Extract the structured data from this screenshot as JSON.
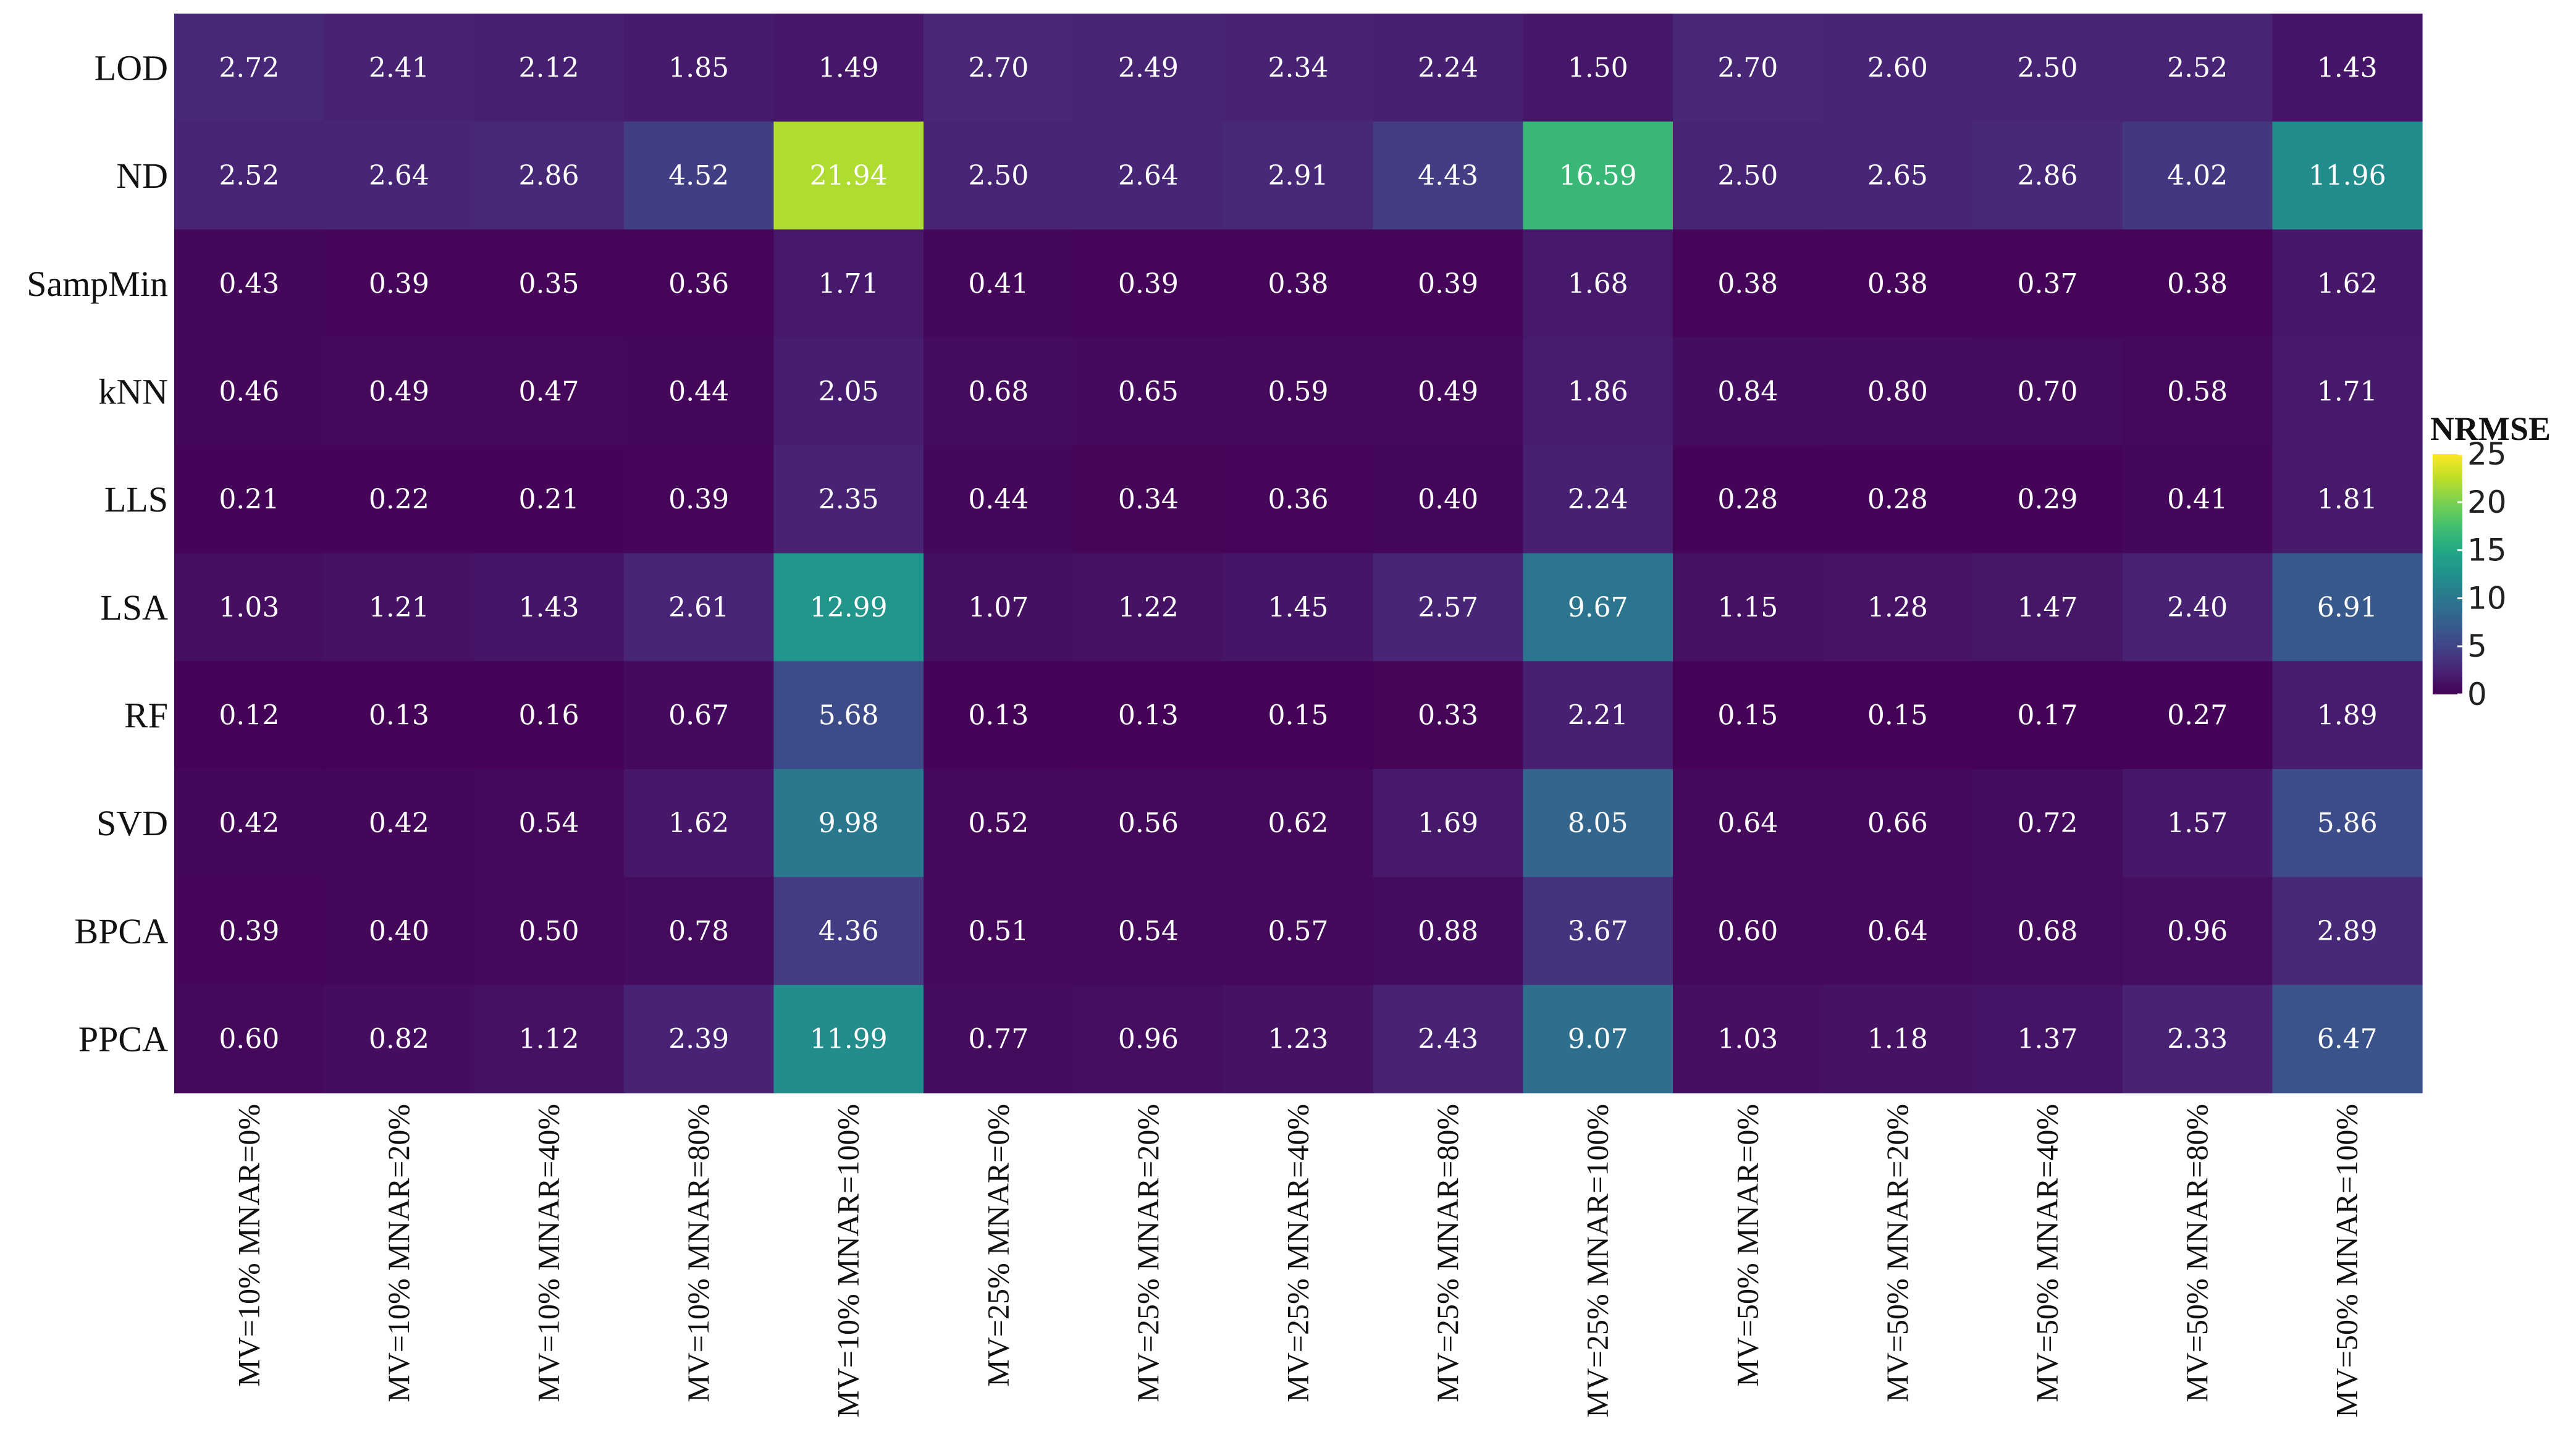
{
  "chart_data": {
    "type": "heatmap",
    "title": "",
    "xlabel": "",
    "ylabel": "",
    "rows": [
      "LOD",
      "ND",
      "SampMin",
      "kNN",
      "LLS",
      "LSA",
      "RF",
      "SVD",
      "BPCA",
      "PPCA"
    ],
    "columns": [
      "MV=10% MNAR=0%",
      "MV=10% MNAR=20%",
      "MV=10% MNAR=40%",
      "MV=10% MNAR=80%",
      "MV=10% MNAR=100%",
      "MV=25% MNAR=0%",
      "MV=25% MNAR=20%",
      "MV=25% MNAR=40%",
      "MV=25% MNAR=80%",
      "MV=25% MNAR=100%",
      "MV=50% MNAR=0%",
      "MV=50% MNAR=20%",
      "MV=50% MNAR=40%",
      "MV=50% MNAR=80%",
      "MV=50% MNAR=100%"
    ],
    "values": [
      [
        2.72,
        2.41,
        2.12,
        1.85,
        1.49,
        2.7,
        2.49,
        2.34,
        2.24,
        1.5,
        2.7,
        2.6,
        2.5,
        2.52,
        1.43
      ],
      [
        2.52,
        2.64,
        2.86,
        4.52,
        21.94,
        2.5,
        2.64,
        2.91,
        4.43,
        16.59,
        2.5,
        2.65,
        2.86,
        4.02,
        11.96
      ],
      [
        0.43,
        0.39,
        0.35,
        0.36,
        1.71,
        0.41,
        0.39,
        0.38,
        0.39,
        1.68,
        0.38,
        0.38,
        0.37,
        0.38,
        1.62
      ],
      [
        0.46,
        0.49,
        0.47,
        0.44,
        2.05,
        0.68,
        0.65,
        0.59,
        0.49,
        1.86,
        0.84,
        0.8,
        0.7,
        0.58,
        1.71
      ],
      [
        0.21,
        0.22,
        0.21,
        0.39,
        2.35,
        0.44,
        0.34,
        0.36,
        0.4,
        2.24,
        0.28,
        0.28,
        0.29,
        0.41,
        1.81
      ],
      [
        1.03,
        1.21,
        1.43,
        2.61,
        12.99,
        1.07,
        1.22,
        1.45,
        2.57,
        9.67,
        1.15,
        1.28,
        1.47,
        2.4,
        6.91
      ],
      [
        0.12,
        0.13,
        0.16,
        0.67,
        5.68,
        0.13,
        0.13,
        0.15,
        0.33,
        2.21,
        0.15,
        0.15,
        0.17,
        0.27,
        1.89
      ],
      [
        0.42,
        0.42,
        0.54,
        1.62,
        9.98,
        0.52,
        0.56,
        0.62,
        1.69,
        8.05,
        0.64,
        0.66,
        0.72,
        1.57,
        5.86
      ],
      [
        0.39,
        0.4,
        0.5,
        0.78,
        4.36,
        0.51,
        0.54,
        0.57,
        0.88,
        3.67,
        0.6,
        0.64,
        0.68,
        0.96,
        2.89
      ],
      [
        0.6,
        0.82,
        1.12,
        2.39,
        11.99,
        0.77,
        0.96,
        1.23,
        2.43,
        9.07,
        1.03,
        1.18,
        1.37,
        2.33,
        6.47
      ]
    ],
    "colorscale": "viridis",
    "color_range": [
      0,
      25
    ],
    "legend": {
      "title": "NRMSE",
      "ticks": [
        25,
        20,
        15,
        10,
        5,
        0
      ],
      "placement": "right"
    }
  }
}
